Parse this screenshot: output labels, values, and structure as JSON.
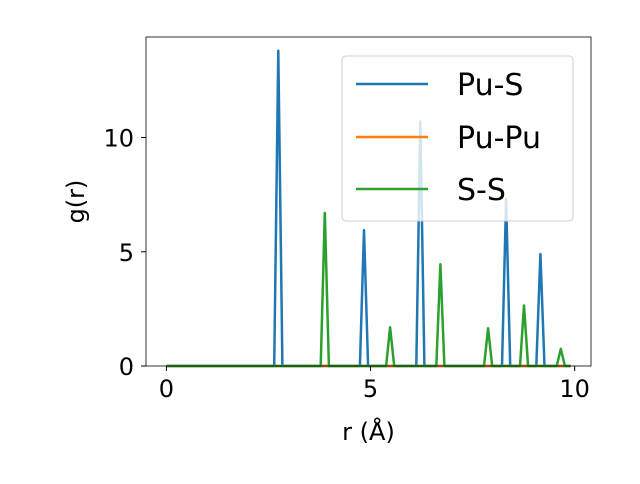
{
  "chart_data": {
    "type": "line",
    "title": "",
    "xlabel": "r (Å)",
    "ylabel": "g(r)",
    "xlim": [
      -0.5,
      10.4
    ],
    "ylim": [
      0,
      14.4
    ],
    "xticks": [
      0,
      5,
      10
    ],
    "yticks": [
      0,
      5,
      10
    ],
    "xtick_labels": [
      "0",
      "5",
      "10"
    ],
    "ytick_labels": [
      "0",
      "5",
      "10"
    ],
    "grid": false,
    "legend_position": "upper right",
    "series": [
      {
        "name": "Pu-S",
        "color": "#1f77b4",
        "x": [
          0,
          2.64,
          2.74,
          2.84,
          4.74,
          4.84,
          4.94,
          6.12,
          6.22,
          6.32,
          8.22,
          8.32,
          8.42,
          9.06,
          9.16,
          9.26,
          9.9
        ],
        "y": [
          0,
          0,
          13.8,
          0,
          0,
          5.95,
          0,
          0,
          10.7,
          0,
          0,
          7.3,
          0,
          0,
          4.9,
          0,
          0
        ]
      },
      {
        "name": "Pu-Pu",
        "color": "#ff7f0e",
        "x": [
          0,
          9.9
        ],
        "y": [
          0,
          0
        ]
      },
      {
        "name": "S-S",
        "color": "#2ca02c",
        "x": [
          0,
          3.78,
          3.88,
          3.98,
          5.38,
          5.48,
          5.58,
          6.61,
          6.71,
          6.81,
          7.78,
          7.88,
          7.98,
          8.66,
          8.76,
          8.86,
          9.56,
          9.66,
          9.76,
          9.9
        ],
        "y": [
          0,
          0,
          6.7,
          0,
          0,
          1.7,
          0,
          0,
          4.45,
          0,
          0,
          1.65,
          0,
          0,
          2.65,
          0,
          0,
          0.75,
          0,
          0
        ]
      }
    ]
  }
}
